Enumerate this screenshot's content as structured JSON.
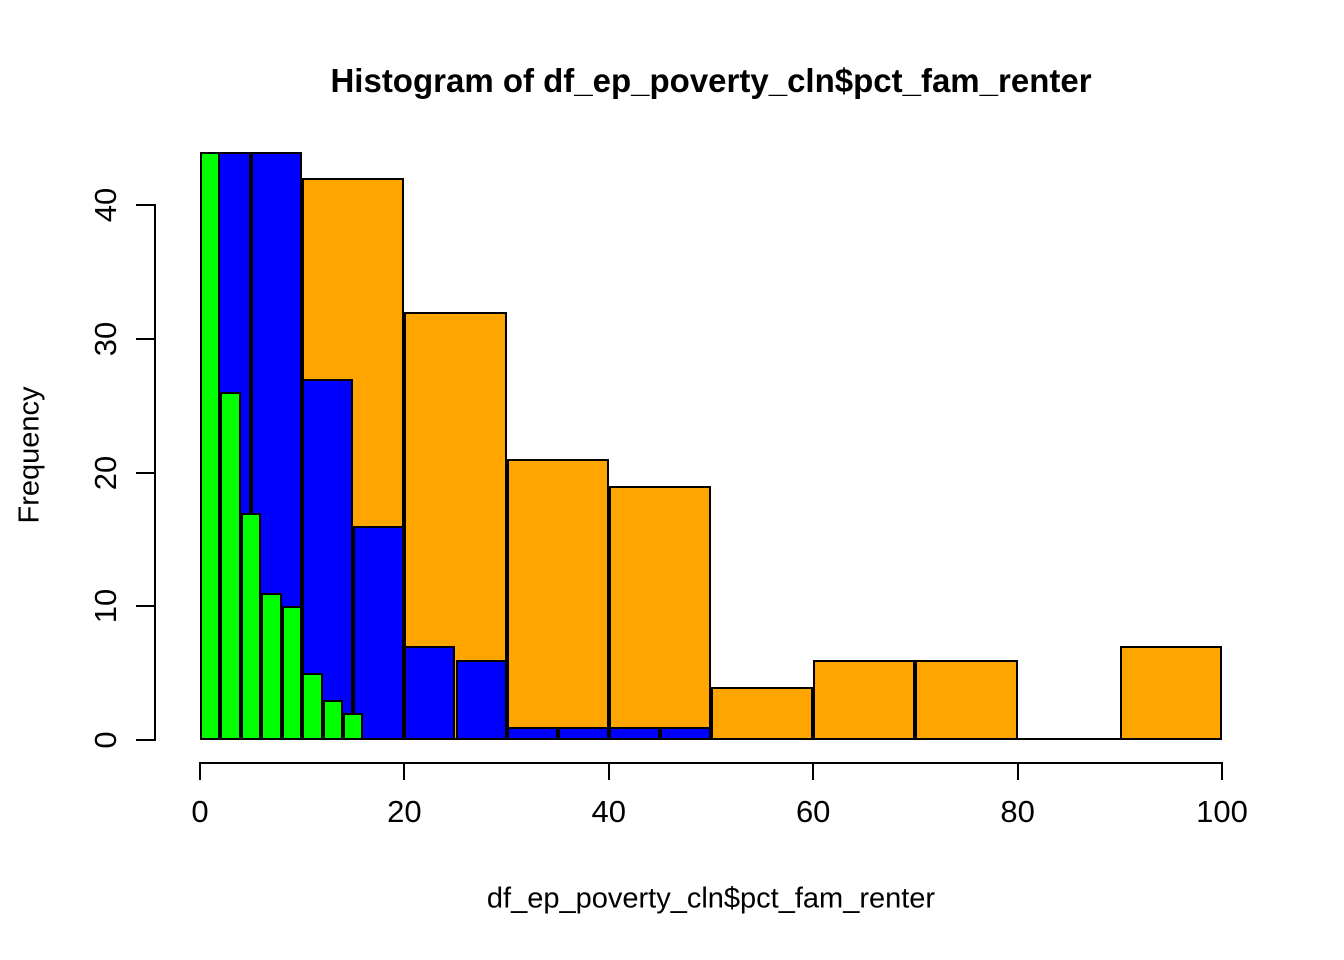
{
  "chart_data": {
    "type": "bar",
    "subtype": "histogram-overlay",
    "title": "Histogram of df_ep_poverty_cln$pct_fam_renter",
    "xlabel": "df_ep_poverty_cln$pct_fam_renter",
    "ylabel": "Frequency",
    "xlim": [
      0,
      100
    ],
    "ylim": [
      0,
      44
    ],
    "x_ticks": [
      0,
      20,
      40,
      60,
      80,
      100
    ],
    "y_ticks": [
      0,
      10,
      20,
      30,
      40
    ],
    "grid": false,
    "legend": null,
    "colors": {
      "orange": "#FFA500",
      "blue": "#0000FF",
      "green": "#00FF00",
      "border": "#000000",
      "background": "#FFFFFF",
      "text": "#000000"
    },
    "series": [
      {
        "name": "orange-binwidth-10",
        "color": "#FFA500",
        "bin_edges": [
          0,
          10,
          20,
          30,
          40,
          50,
          60,
          70,
          80,
          90,
          100
        ],
        "counts": [
          null,
          42,
          32,
          21,
          19,
          4,
          6,
          6,
          0,
          7
        ]
      },
      {
        "name": "blue-binwidth-5",
        "color": "#0000FF",
        "bin_edges": [
          0,
          5,
          10,
          15,
          20,
          25,
          30,
          35,
          40,
          45,
          50
        ],
        "counts": [
          44,
          44,
          27,
          16,
          7,
          6,
          1,
          1,
          1,
          1
        ]
      },
      {
        "name": "green-binwidth-2",
        "color": "#00FF00",
        "bin_edges": [
          0,
          2,
          4,
          6,
          8,
          10,
          12,
          14,
          16
        ],
        "counts": [
          44,
          26,
          17,
          11,
          10,
          5,
          3,
          2
        ]
      }
    ]
  }
}
